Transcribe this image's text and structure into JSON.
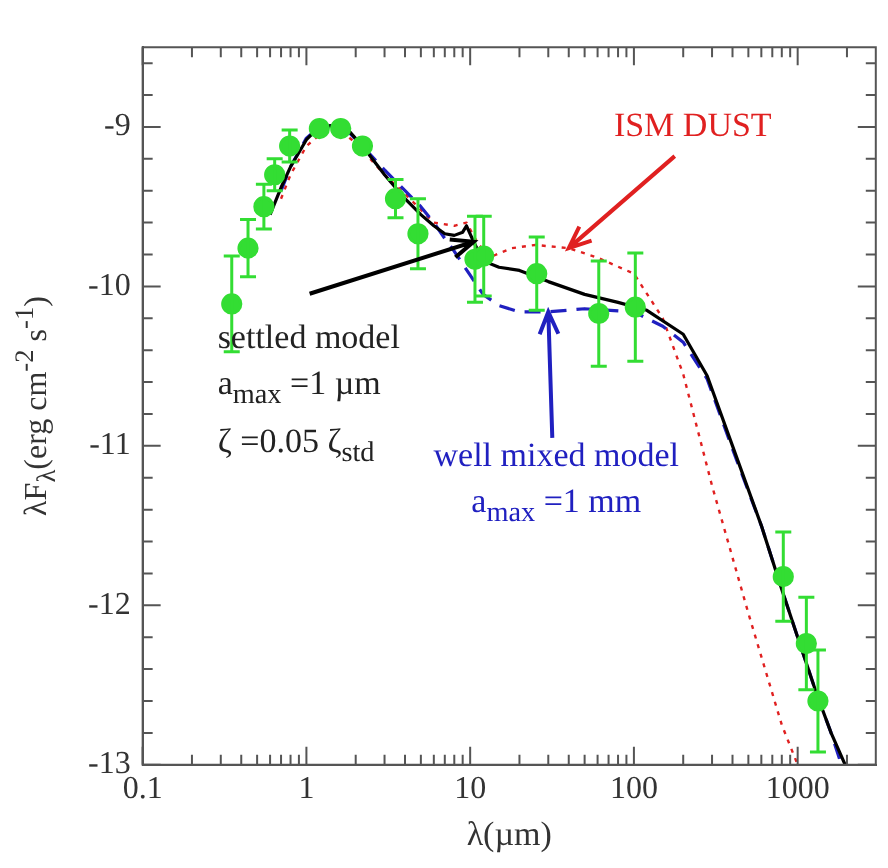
{
  "chart_data": {
    "type": "line",
    "xlabel": "λ(µm)",
    "ylabel": "λF$_{λ}$(erg cm$^{-2}$ s$^{-1}$)",
    "log": "x",
    "grid": false,
    "legend": false,
    "xlim": [
      0.1,
      3000
    ],
    "ylim": [
      -13,
      -8.5
    ],
    "xticks": [
      0.1,
      {
        "value": 0.2,
        "label": null
      },
      {
        "value": 0.3,
        "label": null
      },
      {
        "value": 0.4,
        "label": null
      },
      {
        "value": 0.5,
        "label": null
      },
      {
        "value": 0.6,
        "label": null
      },
      {
        "value": 0.7,
        "label": null
      },
      {
        "value": 0.8,
        "label": null
      },
      {
        "value": 0.9,
        "label": null
      },
      1,
      {
        "value": 2,
        "label": null
      },
      {
        "value": 3,
        "label": null
      },
      {
        "value": 4,
        "label": null
      },
      {
        "value": 5,
        "label": null
      },
      {
        "value": 6,
        "label": null
      },
      {
        "value": 7,
        "label": null
      },
      {
        "value": 8,
        "label": null
      },
      {
        "value": 9,
        "label": null
      },
      10,
      {
        "value": 20,
        "label": null
      },
      {
        "value": 30,
        "label": null
      },
      {
        "value": 40,
        "label": null
      },
      {
        "value": 50,
        "label": null
      },
      {
        "value": 60,
        "label": null
      },
      {
        "value": 70,
        "label": null
      },
      {
        "value": 80,
        "label": null
      },
      {
        "value": 90,
        "label": null
      },
      100,
      {
        "value": 200,
        "label": null
      },
      {
        "value": 300,
        "label": null
      },
      {
        "value": 400,
        "label": null
      },
      {
        "value": 500,
        "label": null
      },
      {
        "value": 600,
        "label": null
      },
      {
        "value": 700,
        "label": null
      },
      {
        "value": 800,
        "label": null
      },
      {
        "value": 900,
        "label": null
      },
      1000,
      {
        "value": 2000,
        "label": null
      }
    ],
    "yticks": [
      -13,
      {
        "value": -12.8,
        "label": null
      },
      {
        "value": -12.6,
        "label": null
      },
      {
        "value": -12.4,
        "label": null
      },
      {
        "value": -12.2,
        "label": null
      },
      -12,
      {
        "value": -11.8,
        "label": null
      },
      {
        "value": -11.6,
        "label": null
      },
      {
        "value": -11.4,
        "label": null
      },
      {
        "value": -11.2,
        "label": null
      },
      -11,
      {
        "value": -10.8,
        "label": null
      },
      {
        "value": -10.6,
        "label": null
      },
      {
        "value": -10.4,
        "label": null
      },
      {
        "value": -10.2,
        "label": null
      },
      -10,
      {
        "value": -9.8,
        "label": null
      },
      {
        "value": -9.6,
        "label": null
      },
      {
        "value": -9.4,
        "label": null
      },
      {
        "value": -9.2,
        "label": null
      },
      -9,
      {
        "value": -8.8,
        "label": null
      },
      {
        "value": -8.6,
        "label": null
      }
    ],
    "series": [
      {
        "type": "scatter",
        "marker": "circle",
        "color": "#33dd33",
        "x": [
          0.35,
          0.44,
          0.55,
          0.64,
          0.79,
          1.2,
          1.62,
          2.2,
          3.5,
          4.8,
          10.7,
          12.1,
          25.5,
          61,
          102,
          817,
          1130,
          1330
        ],
        "values": [
          -10.11,
          -9.76,
          -9.5,
          -9.3,
          -9.12,
          -9.01,
          -9.01,
          -9.12,
          -9.45,
          -9.67,
          -9.83,
          -9.81,
          -9.92,
          -10.17,
          -10.13,
          -11.82,
          -12.24,
          -12.6
        ],
        "errors": [
          0.3,
          0.18,
          0.14,
          0.1,
          0.1,
          null,
          null,
          null,
          0.12,
          0.22,
          0.27,
          0.25,
          0.23,
          0.33,
          0.34,
          0.28,
          0.29,
          0.32
        ]
      },
      {
        "marker": "none",
        "line_style": "solid",
        "color": "#000000",
        "x": [
          0.6,
          0.7,
          0.8,
          1,
          1.2,
          1.5,
          1.8,
          2.2,
          3,
          4,
          5,
          6,
          7,
          8,
          9,
          9.5,
          10.5,
          12,
          15,
          20,
          30,
          50,
          80,
          120,
          200,
          280,
          400,
          600,
          800,
          1000,
          1300,
          1600,
          1950
        ],
        "values": [
          -9.55,
          -9.38,
          -9.25,
          -9.08,
          -9.0,
          -8.99,
          -9.02,
          -9.12,
          -9.3,
          -9.45,
          -9.55,
          -9.62,
          -9.67,
          -9.68,
          -9.66,
          -9.62,
          -9.72,
          -9.84,
          -9.88,
          -9.9,
          -9.97,
          -10.05,
          -10.1,
          -10.15,
          -10.3,
          -10.56,
          -11.0,
          -11.5,
          -11.9,
          -12.2,
          -12.55,
          -12.8,
          -13
        ]
      },
      {
        "marker": "none",
        "line_style": "dashed",
        "color": "#2020c0",
        "x": [
          0.7,
          0.8,
          1,
          1.2,
          1.5,
          1.8,
          2.2,
          3,
          4,
          5,
          6,
          7,
          8,
          10,
          12,
          15,
          20,
          30,
          50,
          100,
          150,
          200,
          280,
          400,
          600,
          800,
          1000,
          1300,
          1600,
          1850
        ],
        "values": [
          -9.4,
          -9.25,
          -9.07,
          -9.0,
          -8.99,
          -9.03,
          -9.12,
          -9.27,
          -9.4,
          -9.5,
          -9.6,
          -9.7,
          -9.78,
          -9.93,
          -10.05,
          -10.12,
          -10.16,
          -10.16,
          -10.14,
          -10.16,
          -10.25,
          -10.35,
          -10.58,
          -11.02,
          -11.5,
          -11.9,
          -12.2,
          -12.55,
          -12.8,
          -13
        ]
      },
      {
        "marker": "none",
        "line_style": "dotted",
        "color": "#e02020",
        "x": [
          0.7,
          0.8,
          1,
          1.3,
          1.6,
          2,
          3,
          4,
          6,
          8,
          9.5,
          11,
          13,
          18,
          25,
          40,
          60,
          100,
          150,
          200,
          300,
          500,
          800,
          1000
        ],
        "values": [
          -9.45,
          -9.3,
          -9.12,
          -9.02,
          -9.02,
          -9.1,
          -9.3,
          -9.42,
          -9.6,
          -9.62,
          -9.6,
          -9.72,
          -9.82,
          -9.76,
          -9.74,
          -9.76,
          -9.82,
          -9.92,
          -10.2,
          -10.55,
          -11.25,
          -12.05,
          -12.75,
          -13
        ]
      }
    ],
    "annotations": [
      {
        "text": "ISM DUST",
        "x": 40,
        "y": -9.76
      },
      {
        "text": "settled model\na$_{max}$ =1 µm\nζ =0.05 ζ$_{std}$",
        "x": 10.5,
        "y": -9.72
      },
      {
        "text": "well mixed model\na$_{max}$ =1 mm",
        "x": 30,
        "y": -10.16
      }
    ]
  }
}
